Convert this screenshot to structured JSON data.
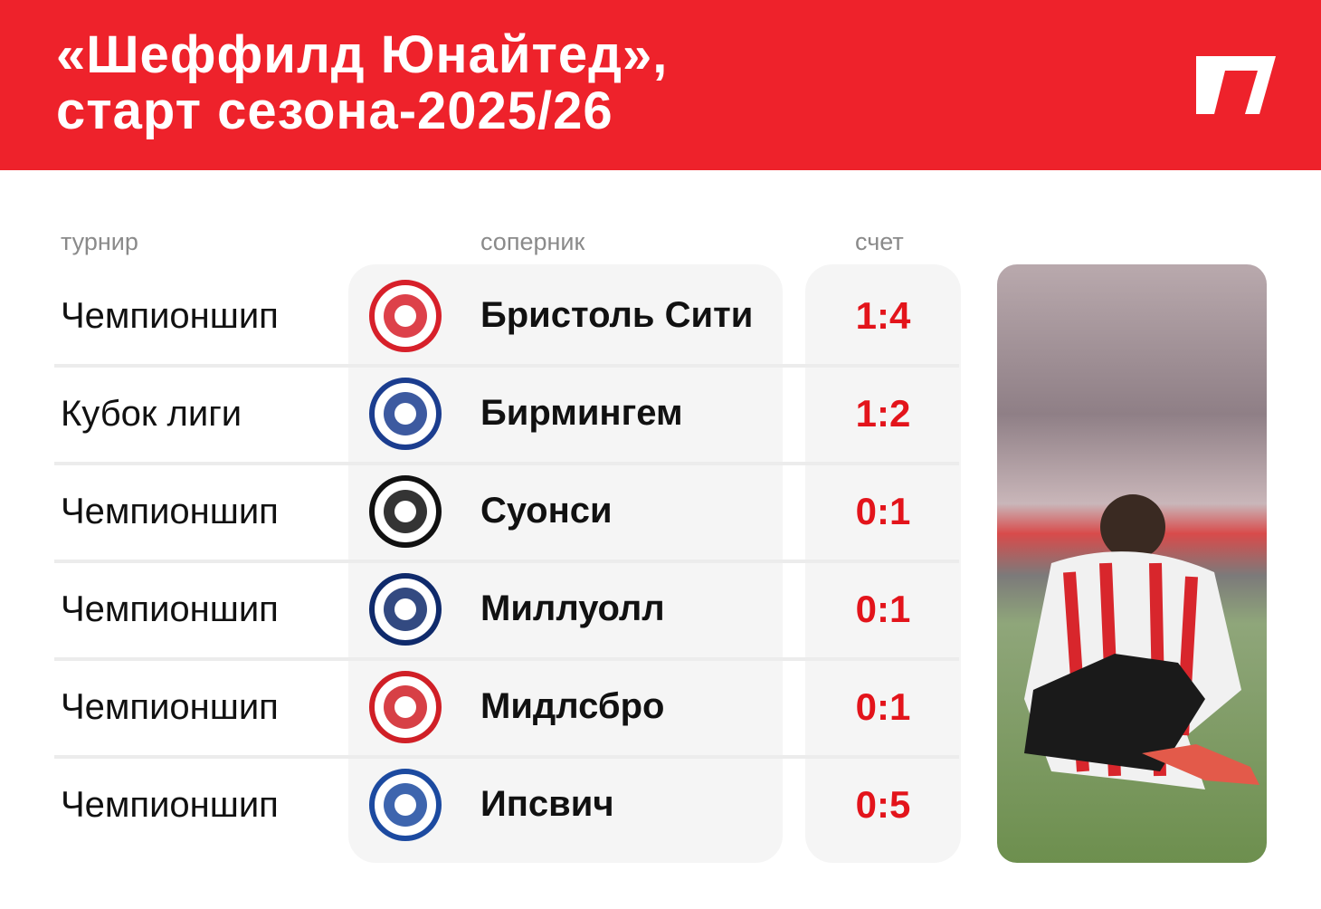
{
  "header": {
    "title_line1": "«Шеффилд Юнайтед»,",
    "title_line2": "старт сезона-2025/26",
    "brand_color": "#ee222b"
  },
  "columns": {
    "tournament": "турнир",
    "opponent": "соперник",
    "score": "счет"
  },
  "rows": [
    {
      "tournament": "Чемпионшип",
      "opponent": "Бристоль Сити",
      "score": "1:4",
      "crest": "bristol-city-crest",
      "crest_color": "#d7202a"
    },
    {
      "tournament": "Кубок лиги",
      "opponent": "Бирмингем",
      "score": "1:2",
      "crest": "birmingham-city-crest",
      "crest_color": "#1b3d8f"
    },
    {
      "tournament": "Чемпионшип",
      "opponent": "Суонси",
      "score": "0:1",
      "crest": "swansea-city-crest",
      "crest_color": "#111111"
    },
    {
      "tournament": "Чемпионшип",
      "opponent": "Миллуолл",
      "score": "0:1",
      "crest": "millwall-crest",
      "crest_color": "#0f2a6b"
    },
    {
      "tournament": "Чемпионшип",
      "opponent": "Мидлсбро",
      "score": "0:1",
      "crest": "middlesbrough-crest",
      "crest_color": "#d01f26"
    },
    {
      "tournament": "Чемпионшип",
      "opponent": "Ипсвич",
      "score": "0:5",
      "crest": "ipswich-town-crest",
      "crest_color": "#1c4aa0"
    }
  ],
  "score_color": "#e3141b"
}
